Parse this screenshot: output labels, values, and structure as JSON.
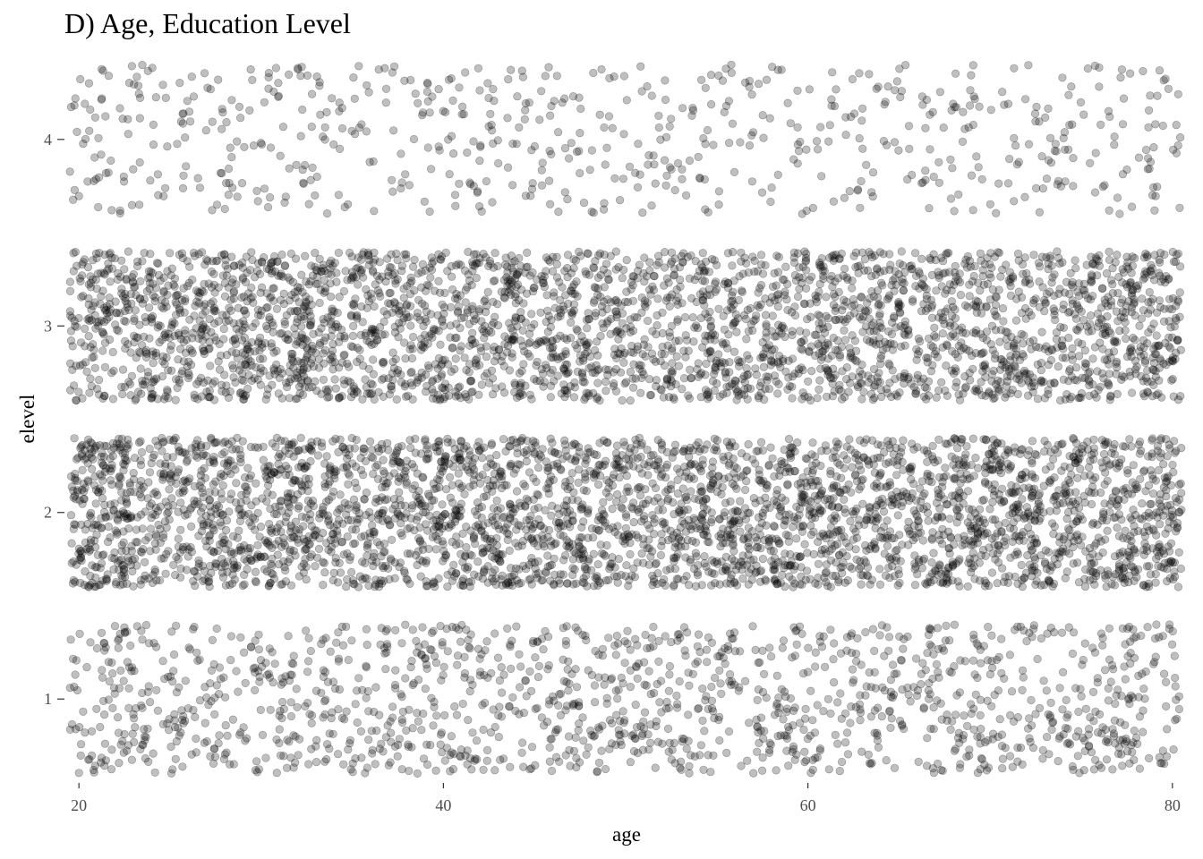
{
  "chart_data": {
    "type": "scatter",
    "title": "D) Age, Education Level",
    "xlabel": "age",
    "ylabel": "elevel",
    "xlim": [
      19.5,
      80.5
    ],
    "ylim": [
      0.55,
      4.45
    ],
    "x_ticks": [
      20,
      40,
      60,
      80
    ],
    "y_ticks": [
      1,
      2,
      3,
      4
    ],
    "jitter": {
      "x": 0.5,
      "y": 0.4
    },
    "grid": false,
    "legend": "none",
    "point_color": "#000000",
    "point_alpha": 0.25,
    "category_counts": [
      {
        "elevel": 1,
        "n": 1400
      },
      {
        "elevel": 2,
        "n": 3600
      },
      {
        "elevel": 3,
        "n": 3200
      },
      {
        "elevel": 4,
        "n": 650
      }
    ]
  }
}
